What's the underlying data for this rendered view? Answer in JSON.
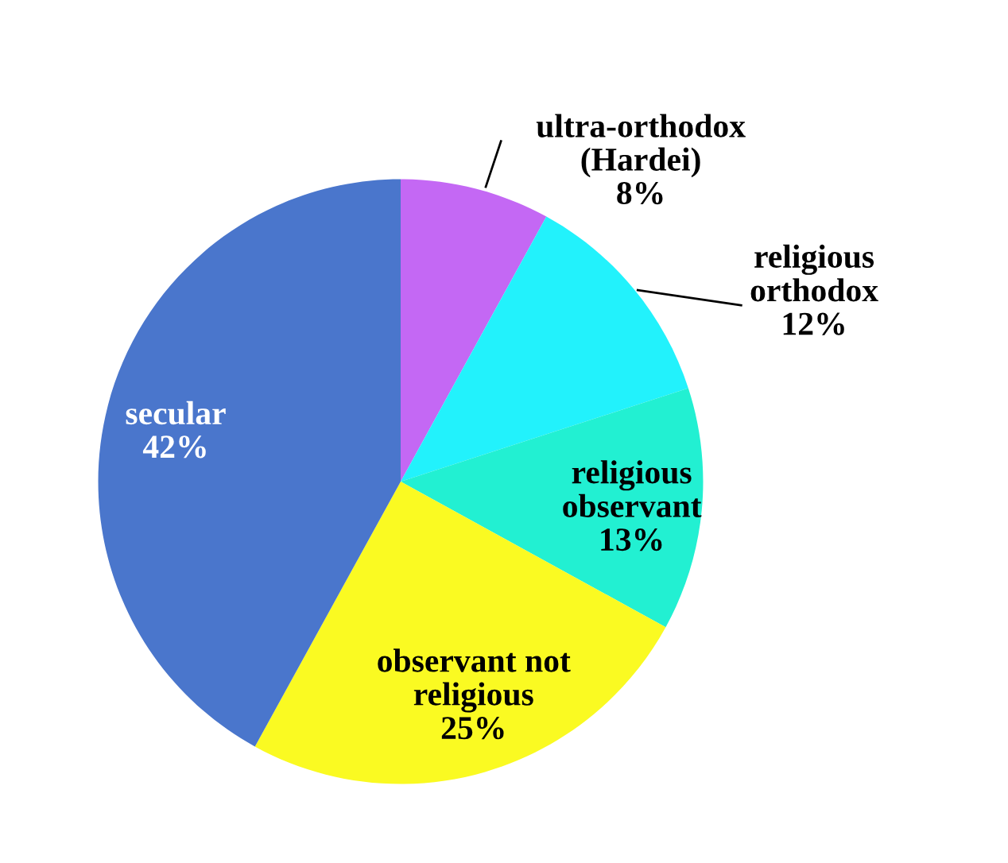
{
  "chart_data": {
    "type": "pie",
    "categories": [
      "ultra-orthodox\n(Hardei)",
      "religious\northodox",
      "religious\nobservant",
      "observant not\nreligious",
      "secular"
    ],
    "values": [
      8,
      12,
      13,
      25,
      42
    ],
    "value_labels": [
      "8%",
      "12%",
      "13%",
      "25%",
      "42%"
    ],
    "colors": [
      "#c468f4",
      "#22f2fc",
      "#22f0d2",
      "#fafa22",
      "#4a76cc"
    ]
  }
}
